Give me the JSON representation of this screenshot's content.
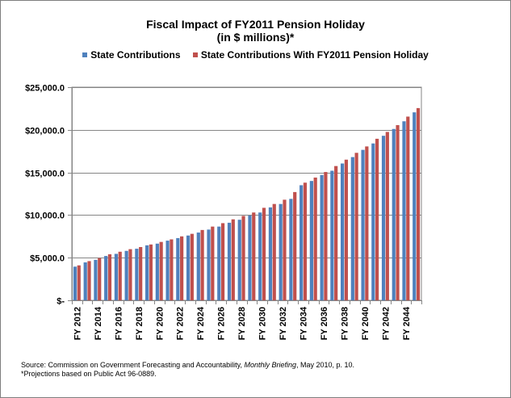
{
  "chart_data": {
    "type": "bar",
    "title": "Fiscal Impact of FY2011 Pension Holiday",
    "subtitle": "(in $ millions)*",
    "categories": [
      "FY 2012",
      "FY 2013",
      "FY 2014",
      "FY 2015",
      "FY 2016",
      "FY 2017",
      "FY 2018",
      "FY 2019",
      "FY 2020",
      "FY 2021",
      "FY 2022",
      "FY 2023",
      "FY 2024",
      "FY 2025",
      "FY 2026",
      "FY 2027",
      "FY 2028",
      "FY 2029",
      "FY 2030",
      "FY 2031",
      "FY 2032",
      "FY 2033",
      "FY 2034",
      "FY 2035",
      "FY 2036",
      "FY 2037",
      "FY 2038",
      "FY 2039",
      "FY 2040",
      "FY 2041",
      "FY 2042",
      "FY 2043",
      "FY 2044",
      "FY 2045"
    ],
    "tick_labels": [
      "FY 2012",
      "FY 2014",
      "FY 2016",
      "FY 2018",
      "FY 2020",
      "FY 2022",
      "FY 2024",
      "FY 2026",
      "FY 2028",
      "FY 2030",
      "FY 2032",
      "FY 2034",
      "FY 2036",
      "FY 2038",
      "FY 2040",
      "FY 2042",
      "FY 2044"
    ],
    "series": [
      {
        "name": "State Contributions",
        "color": "#4f81bd",
        "values": [
          3950,
          4450,
          4750,
          5200,
          5450,
          5800,
          6050,
          6450,
          6650,
          7000,
          7300,
          7600,
          7950,
          8300,
          8650,
          9100,
          9450,
          9950,
          10300,
          10900,
          11300,
          11900,
          13500,
          14000,
          14700,
          15200,
          16050,
          16800,
          17650,
          18400,
          19300,
          20100,
          21000,
          22050
        ]
      },
      {
        "name": "State Contributions With FY2011 Pension Holiday",
        "color": "#c0504d",
        "values": [
          4100,
          4600,
          4950,
          5400,
          5700,
          6000,
          6250,
          6550,
          6850,
          7150,
          7500,
          7800,
          8250,
          8650,
          9050,
          9500,
          9900,
          10300,
          10850,
          11300,
          11800,
          12700,
          13800,
          14400,
          15050,
          15750,
          16500,
          17300,
          18050,
          18950,
          19750,
          20550,
          21550,
          22550
        ]
      }
    ],
    "yticks": [
      0,
      5000,
      10000,
      15000,
      20000,
      25000
    ],
    "ytick_labels": [
      "$-",
      "$5,000.0",
      "$10,000.0",
      "$15,000.0",
      "$20,000.0",
      "$25,000.0"
    ],
    "ylim": [
      0,
      25000
    ],
    "grid": "horizontal",
    "legend_position": "top"
  },
  "footnote": {
    "source_prefix": "Source: Commission on Government Forecasting and Accountability, ",
    "source_italic": "Monthly Briefing",
    "source_suffix": ", May 2010, p. 10.",
    "note": "*Projections based on Public Act 96-0889."
  }
}
